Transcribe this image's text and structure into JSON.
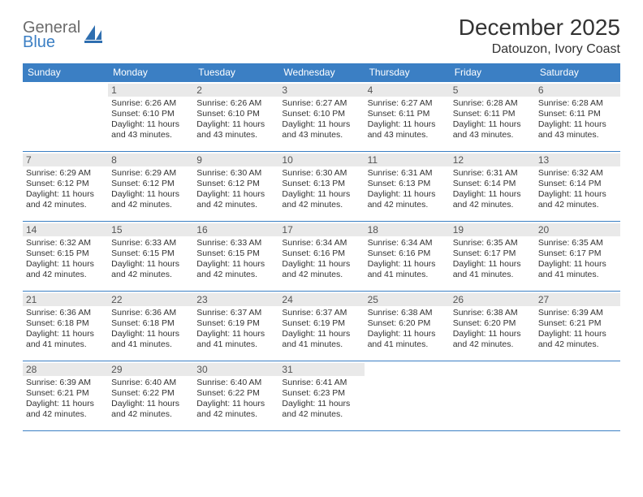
{
  "logo": {
    "general": "General",
    "blue": "Blue",
    "icon_color": "#2f6fb0"
  },
  "title": "December 2025",
  "location": "Datouzon, Ivory Coast",
  "header_bg": "#3b7fc4",
  "daynum_bg": "#e9e9e9",
  "rule_color": "#3b7fc4",
  "weekdays": [
    "Sunday",
    "Monday",
    "Tuesday",
    "Wednesday",
    "Thursday",
    "Friday",
    "Saturday"
  ],
  "first_weekday_index": 1,
  "days": [
    {
      "n": 1,
      "sunrise": "6:26 AM",
      "sunset": "6:10 PM",
      "daylight": "11 hours and 43 minutes."
    },
    {
      "n": 2,
      "sunrise": "6:26 AM",
      "sunset": "6:10 PM",
      "daylight": "11 hours and 43 minutes."
    },
    {
      "n": 3,
      "sunrise": "6:27 AM",
      "sunset": "6:10 PM",
      "daylight": "11 hours and 43 minutes."
    },
    {
      "n": 4,
      "sunrise": "6:27 AM",
      "sunset": "6:11 PM",
      "daylight": "11 hours and 43 minutes."
    },
    {
      "n": 5,
      "sunrise": "6:28 AM",
      "sunset": "6:11 PM",
      "daylight": "11 hours and 43 minutes."
    },
    {
      "n": 6,
      "sunrise": "6:28 AM",
      "sunset": "6:11 PM",
      "daylight": "11 hours and 43 minutes."
    },
    {
      "n": 7,
      "sunrise": "6:29 AM",
      "sunset": "6:12 PM",
      "daylight": "11 hours and 42 minutes."
    },
    {
      "n": 8,
      "sunrise": "6:29 AM",
      "sunset": "6:12 PM",
      "daylight": "11 hours and 42 minutes."
    },
    {
      "n": 9,
      "sunrise": "6:30 AM",
      "sunset": "6:12 PM",
      "daylight": "11 hours and 42 minutes."
    },
    {
      "n": 10,
      "sunrise": "6:30 AM",
      "sunset": "6:13 PM",
      "daylight": "11 hours and 42 minutes."
    },
    {
      "n": 11,
      "sunrise": "6:31 AM",
      "sunset": "6:13 PM",
      "daylight": "11 hours and 42 minutes."
    },
    {
      "n": 12,
      "sunrise": "6:31 AM",
      "sunset": "6:14 PM",
      "daylight": "11 hours and 42 minutes."
    },
    {
      "n": 13,
      "sunrise": "6:32 AM",
      "sunset": "6:14 PM",
      "daylight": "11 hours and 42 minutes."
    },
    {
      "n": 14,
      "sunrise": "6:32 AM",
      "sunset": "6:15 PM",
      "daylight": "11 hours and 42 minutes."
    },
    {
      "n": 15,
      "sunrise": "6:33 AM",
      "sunset": "6:15 PM",
      "daylight": "11 hours and 42 minutes."
    },
    {
      "n": 16,
      "sunrise": "6:33 AM",
      "sunset": "6:15 PM",
      "daylight": "11 hours and 42 minutes."
    },
    {
      "n": 17,
      "sunrise": "6:34 AM",
      "sunset": "6:16 PM",
      "daylight": "11 hours and 42 minutes."
    },
    {
      "n": 18,
      "sunrise": "6:34 AM",
      "sunset": "6:16 PM",
      "daylight": "11 hours and 41 minutes."
    },
    {
      "n": 19,
      "sunrise": "6:35 AM",
      "sunset": "6:17 PM",
      "daylight": "11 hours and 41 minutes."
    },
    {
      "n": 20,
      "sunrise": "6:35 AM",
      "sunset": "6:17 PM",
      "daylight": "11 hours and 41 minutes."
    },
    {
      "n": 21,
      "sunrise": "6:36 AM",
      "sunset": "6:18 PM",
      "daylight": "11 hours and 41 minutes."
    },
    {
      "n": 22,
      "sunrise": "6:36 AM",
      "sunset": "6:18 PM",
      "daylight": "11 hours and 41 minutes."
    },
    {
      "n": 23,
      "sunrise": "6:37 AM",
      "sunset": "6:19 PM",
      "daylight": "11 hours and 41 minutes."
    },
    {
      "n": 24,
      "sunrise": "6:37 AM",
      "sunset": "6:19 PM",
      "daylight": "11 hours and 41 minutes."
    },
    {
      "n": 25,
      "sunrise": "6:38 AM",
      "sunset": "6:20 PM",
      "daylight": "11 hours and 41 minutes."
    },
    {
      "n": 26,
      "sunrise": "6:38 AM",
      "sunset": "6:20 PM",
      "daylight": "11 hours and 42 minutes."
    },
    {
      "n": 27,
      "sunrise": "6:39 AM",
      "sunset": "6:21 PM",
      "daylight": "11 hours and 42 minutes."
    },
    {
      "n": 28,
      "sunrise": "6:39 AM",
      "sunset": "6:21 PM",
      "daylight": "11 hours and 42 minutes."
    },
    {
      "n": 29,
      "sunrise": "6:40 AM",
      "sunset": "6:22 PM",
      "daylight": "11 hours and 42 minutes."
    },
    {
      "n": 30,
      "sunrise": "6:40 AM",
      "sunset": "6:22 PM",
      "daylight": "11 hours and 42 minutes."
    },
    {
      "n": 31,
      "sunrise": "6:41 AM",
      "sunset": "6:23 PM",
      "daylight": "11 hours and 42 minutes."
    }
  ],
  "labels": {
    "sunrise": "Sunrise: ",
    "sunset": "Sunset: ",
    "daylight": "Daylight: "
  }
}
